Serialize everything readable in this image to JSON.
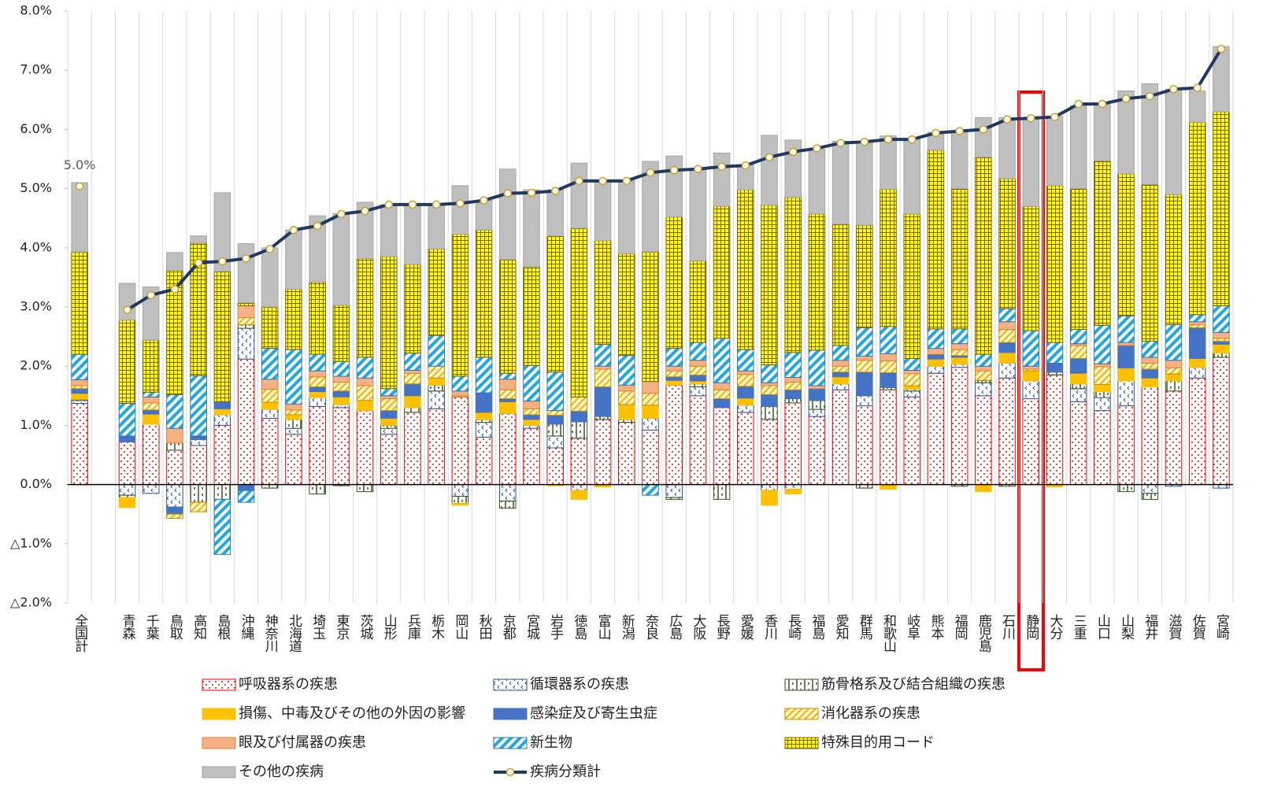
{
  "chart_data": {
    "type": "bar",
    "stacked": true,
    "categories": [
      "全国計",
      null,
      "青森",
      "千葉",
      "鳥取",
      "高知",
      "島根",
      "沖縄",
      "神奈川",
      "北海道",
      "埼玉",
      "東京",
      "茨城",
      "山形",
      "兵庫",
      "栃木",
      "岡山",
      "秋田",
      "京都",
      "宮城",
      "岩手",
      "徳島",
      "富山",
      "新潟",
      "奈良",
      "広島",
      "大阪",
      "長野",
      "愛媛",
      "香川",
      "長崎",
      "福島",
      "愛知",
      "群馬",
      "和歌山",
      "岐阜",
      "熊本",
      "福岡",
      "鹿児島",
      "石川",
      "静岡",
      "大分",
      "三重",
      "山口",
      "山梨",
      "福井",
      "滋賀",
      "佐賀",
      "宮崎"
    ],
    "ylim": [
      -2,
      8
    ],
    "yticks": [
      {
        "value": -2,
        "label": "△2.0%"
      },
      {
        "value": -1,
        "label": "△1.0%"
      },
      {
        "value": 0,
        "label": "0.0%"
      },
      {
        "value": 1,
        "label": "1.0%"
      },
      {
        "value": 2,
        "label": "2.0%"
      },
      {
        "value": 3,
        "label": "3.0%"
      },
      {
        "value": 4,
        "label": "4.0%"
      },
      {
        "value": 5,
        "label": "5.0%"
      },
      {
        "value": 6,
        "label": "6.0%"
      },
      {
        "value": 7,
        "label": "7.0%"
      },
      {
        "value": 8,
        "label": "8.0%"
      }
    ],
    "series": [
      {
        "name": "呼吸器系の疾患",
        "color": "#ff0000",
        "pattern": "dots",
        "values": [
          1.37,
          null,
          0.72,
          1.02,
          0.58,
          0.66,
          1.0,
          2.12,
          1.12,
          0.85,
          1.32,
          1.3,
          1.25,
          0.85,
          1.22,
          1.28,
          1.48,
          0.8,
          1.2,
          0.95,
          0.62,
          0.78,
          1.1,
          1.05,
          0.92,
          1.68,
          1.5,
          1.3,
          1.22,
          1.1,
          1.38,
          1.15,
          1.6,
          1.33,
          1.6,
          1.48,
          1.88,
          1.98,
          1.5,
          1.8,
          1.45,
          1.85,
          1.4,
          1.25,
          1.33,
          1.65,
          1.58,
          1.8,
          2.15
        ]
      },
      {
        "name": "循環器系の疾患",
        "color": "#2f5597",
        "pattern": "chevrons",
        "values": [
          0.05,
          null,
          -0.18,
          -0.15,
          -0.38,
          0.1,
          0.18,
          0.52,
          0.15,
          0.1,
          0.15,
          0.05,
          0,
          0.1,
          0,
          0.3,
          -0.2,
          0.25,
          -0.28,
          0.05,
          0.2,
          -0.1,
          0,
          0,
          0.2,
          -0.22,
          0.15,
          0,
          0.12,
          -0.1,
          -0.08,
          0.12,
          0.1,
          0.17,
          0,
          0.1,
          0.12,
          0.05,
          0.22,
          0.25,
          0.3,
          0,
          0.22,
          0.22,
          0.42,
          -0.15,
          -0.03,
          0.18,
          -0.06
        ]
      },
      {
        "name": "筋骨格系及び結合組織の疾患",
        "color": "#375623",
        "pattern": "ticks",
        "values": [
          0.02,
          null,
          -0.04,
          0,
          0.12,
          -0.3,
          -0.25,
          0.06,
          -0.06,
          0.15,
          -0.16,
          -0.02,
          -0.12,
          0.05,
          0.08,
          0.1,
          -0.12,
          0.05,
          -0.12,
          0,
          0.2,
          0.28,
          0.05,
          0.05,
          0,
          -0.03,
          0.05,
          -0.25,
          0,
          0.22,
          0.07,
          0.15,
          0,
          -0.06,
          0.04,
          0.03,
          0,
          -0.03,
          0.04,
          -0.03,
          0,
          0.05,
          0.08,
          0.1,
          -0.12,
          -0.1,
          0.17,
          0,
          0.07
        ]
      },
      {
        "name": "損傷、中毒及びその他の外因の影響",
        "color": "#ffc000",
        "pattern": "solid",
        "values": [
          0.1,
          null,
          -0.17,
          0.17,
          0,
          0,
          0.1,
          0,
          0.12,
          0.08,
          0.1,
          0.13,
          0.17,
          0.12,
          0.2,
          0.12,
          -0.03,
          0.12,
          0.2,
          0.1,
          -0.02,
          -0.15,
          -0.04,
          0.25,
          0.22,
          0.08,
          0.05,
          0,
          0.12,
          -0.25,
          -0.08,
          0,
          0.12,
          0,
          -0.08,
          0.06,
          0.12,
          0.12,
          -0.12,
          0.18,
          0.17,
          -0.04,
          0.18,
          0.12,
          0.22,
          0.15,
          0.12,
          0.15,
          0.15
        ]
      },
      {
        "name": "感染症及び寄生虫症",
        "color": "#4472c4",
        "pattern": "solid",
        "values": [
          0.08,
          null,
          0.1,
          0.07,
          -0.12,
          0.06,
          0.12,
          -0.1,
          0,
          0,
          0.08,
          0.1,
          0,
          0.13,
          0.2,
          0,
          0,
          0.33,
          0.05,
          0.08,
          0.15,
          0.18,
          0.5,
          0,
          0,
          0.06,
          0.1,
          0.15,
          0.2,
          0.2,
          0.15,
          0.2,
          0.08,
          0.4,
          0.25,
          0,
          0.08,
          0.03,
          0,
          0.17,
          0,
          0.15,
          0.25,
          0,
          0.38,
          0.15,
          0,
          0.52,
          0.05
        ]
      },
      {
        "name": "消化器系の疾患",
        "color": "#bf9000",
        "pattern": "hatch",
        "values": [
          0.05,
          null,
          0,
          0.12,
          -0.07,
          -0.16,
          0,
          0.12,
          0.22,
          0.08,
          0.17,
          0.15,
          0.25,
          0.2,
          0.18,
          0.2,
          0.02,
          0,
          0.15,
          0.1,
          0.08,
          0.24,
          0.3,
          0.23,
          0.2,
          0.1,
          0.15,
          0.15,
          0.2,
          0.15,
          0.13,
          0,
          0.1,
          0.2,
          0.2,
          0.2,
          0,
          0.1,
          0.16,
          0.22,
          0.03,
          0,
          0.22,
          0.3,
          0,
          0.1,
          0.1,
          0.05,
          0.05
        ]
      },
      {
        "name": "眼及び付属器の疾患",
        "color": "#ed7d31",
        "pattern": "light",
        "values": [
          0.1,
          null,
          0,
          0.1,
          0.25,
          0,
          0,
          0.2,
          0.17,
          0.1,
          0.1,
          0.1,
          0.13,
          0.05,
          0.05,
          0,
          0.08,
          0,
          0.18,
          0.13,
          0,
          0,
          0.05,
          0.1,
          0.2,
          0.08,
          0.1,
          0.12,
          0.06,
          0.05,
          0.08,
          0.05,
          0.1,
          0.07,
          0.12,
          0.06,
          0.1,
          0.1,
          0.08,
          0.13,
          0.05,
          0,
          0.03,
          0.05,
          0.05,
          0.1,
          0.13,
          0.05,
          0.1
        ]
      },
      {
        "name": "新生物",
        "color": "#2e75b6",
        "pattern": "stripes",
        "values": [
          0.43,
          null,
          0.55,
          0.08,
          0.57,
          1.02,
          -0.93,
          -0.2,
          0.52,
          0.92,
          0.28,
          0.25,
          0.35,
          0.12,
          0.29,
          0.52,
          0.25,
          0.6,
          0.1,
          0.6,
          0.65,
          0,
          0.37,
          0.5,
          -0.18,
          0.3,
          0.3,
          0.75,
          0.36,
          0.3,
          0.42,
          0.6,
          0.25,
          0.48,
          0.46,
          0.2,
          0.33,
          0.25,
          0.2,
          0.22,
          0.6,
          0.35,
          0.24,
          0.65,
          0.45,
          0.27,
          0.6,
          0.12,
          0.45
        ]
      },
      {
        "name": "特殊目的用コード",
        "color": "#7f6000",
        "pattern": "grid",
        "values": [
          1.73,
          null,
          1.41,
          0.88,
          2.1,
          2.24,
          2.2,
          0.05,
          0.7,
          1.02,
          1.22,
          0.95,
          1.67,
          2.23,
          1.5,
          1.46,
          2.4,
          2.15,
          1.92,
          1.67,
          2.3,
          2.85,
          1.75,
          1.72,
          2.19,
          2.22,
          1.38,
          2.23,
          2.7,
          2.7,
          2.62,
          2.3,
          2.05,
          1.73,
          2.32,
          2.44,
          3.02,
          2.37,
          3.33,
          2.2,
          2.1,
          2.65,
          2.38,
          2.78,
          2.4,
          2.65,
          2.2,
          3.25,
          3.28
        ]
      },
      {
        "name": "その他の疾病",
        "color": "#a6a6a6",
        "pattern": "gray",
        "values": [
          1.17,
          null,
          0.62,
          0.9,
          0.3,
          0.12,
          1.33,
          1.0,
          1.0,
          1.0,
          1.12,
          1.55,
          0.95,
          0.88,
          1.01,
          0.75,
          0.82,
          0.5,
          1.53,
          1.3,
          0.78,
          1.1,
          1.03,
          1.23,
          1.53,
          1.03,
          1.55,
          0.9,
          0.42,
          1.18,
          0.97,
          1.1,
          1.4,
          1.42,
          0.9,
          1.26,
          0.3,
          0.97,
          0.67,
          1.03,
          1.5,
          1.17,
          1.4,
          0.95,
          1.4,
          1.7,
          1.78,
          0.53,
          1.1
        ]
      },
      {
        "name": "疾病分類計",
        "type": "line",
        "color": "#203864",
        "marker_color": "#c9a227",
        "values": [
          5.04,
          null,
          2.95,
          3.2,
          3.3,
          3.75,
          3.77,
          3.82,
          3.98,
          4.3,
          4.37,
          4.57,
          4.62,
          4.73,
          4.73,
          4.73,
          4.75,
          4.8,
          4.92,
          4.93,
          4.96,
          5.13,
          5.13,
          5.13,
          5.27,
          5.31,
          5.33,
          5.37,
          5.39,
          5.53,
          5.62,
          5.68,
          5.77,
          5.79,
          5.83,
          5.83,
          5.94,
          5.97,
          6.0,
          6.17,
          6.19,
          6.21,
          6.43,
          6.43,
          6.52,
          6.56,
          6.68,
          6.7,
          7.36
        ],
        "value_labels": [
          "5.0%",
          null,
          null,
          null,
          null,
          null,
          null,
          null,
          null,
          null,
          null,
          null,
          null,
          null,
          null,
          null,
          null,
          null,
          null,
          null,
          null,
          null,
          null,
          null,
          null,
          null,
          null,
          null,
          null,
          null,
          null,
          null,
          null,
          null,
          null,
          null,
          null,
          null,
          null,
          null,
          null,
          null,
          null,
          null,
          null,
          null,
          null,
          null,
          null
        ]
      }
    ],
    "legend": "bottom"
  }
}
